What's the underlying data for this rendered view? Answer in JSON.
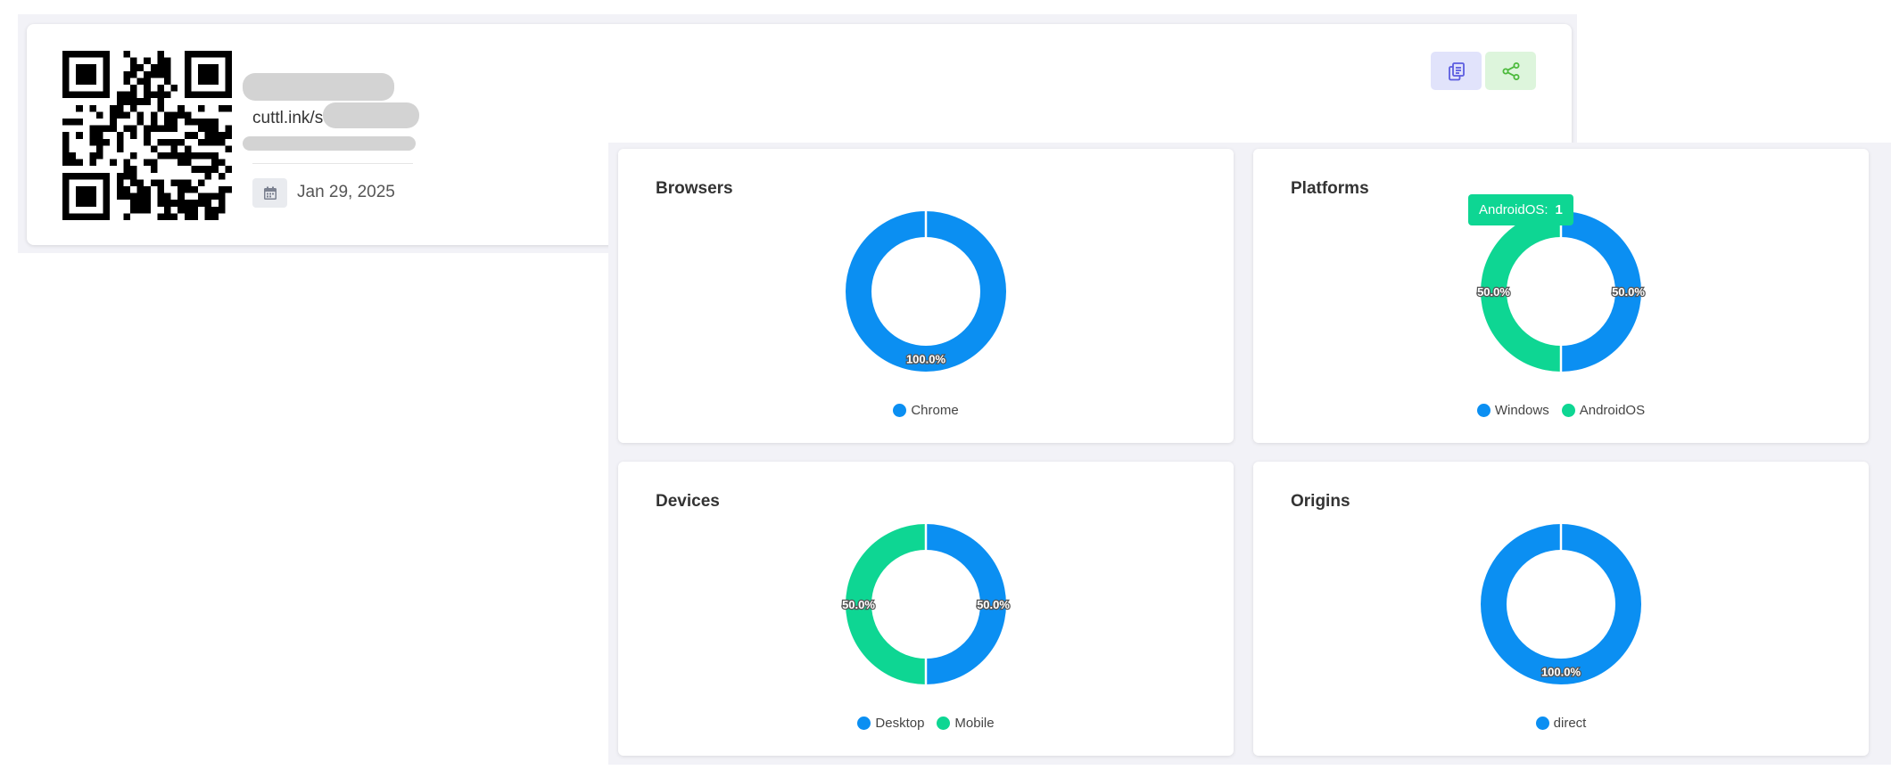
{
  "link": {
    "short_url": "cuttl.ink/s",
    "date": "Jan 29, 2025",
    "date_icon": "calendar-icon",
    "actions": [
      {
        "icon": "copy-icon",
        "color": "#5c5ce0"
      },
      {
        "icon": "share-icon",
        "color": "#4cba3c"
      }
    ]
  },
  "colors": {
    "blue": "#0b8ff2",
    "green": "#0ed693"
  },
  "charts": [
    {
      "id": "browsers",
      "title": "Browsers",
      "segments": [
        {
          "name": "Chrome",
          "value": 100.0,
          "color": "#0b8ff2"
        }
      ]
    },
    {
      "id": "platforms",
      "title": "Platforms",
      "segments": [
        {
          "name": "Windows",
          "value": 50.0,
          "color": "#0b8ff2"
        },
        {
          "name": "AndroidOS",
          "value": 50.0,
          "color": "#0ed693"
        }
      ],
      "tooltip": {
        "label": "AndroidOS:",
        "value": "1"
      }
    },
    {
      "id": "devices",
      "title": "Devices",
      "segments": [
        {
          "name": "Desktop",
          "value": 50.0,
          "color": "#0b8ff2"
        },
        {
          "name": "Mobile",
          "value": 50.0,
          "color": "#0ed693"
        }
      ]
    },
    {
      "id": "origins",
      "title": "Origins",
      "segments": [
        {
          "name": "direct",
          "value": 100.0,
          "color": "#0b8ff2"
        }
      ]
    }
  ],
  "chart_data": [
    {
      "type": "pie",
      "title": "Browsers",
      "categories": [
        "Chrome"
      ],
      "values": [
        100.0
      ],
      "legend": "bottom"
    },
    {
      "type": "pie",
      "title": "Platforms",
      "categories": [
        "Windows",
        "AndroidOS"
      ],
      "values": [
        50.0,
        50.0
      ],
      "legend": "bottom"
    },
    {
      "type": "pie",
      "title": "Devices",
      "categories": [
        "Desktop",
        "Mobile"
      ],
      "values": [
        50.0,
        50.0
      ],
      "legend": "bottom"
    },
    {
      "type": "pie",
      "title": "Origins",
      "categories": [
        "direct"
      ],
      "values": [
        100.0
      ],
      "legend": "bottom"
    }
  ]
}
